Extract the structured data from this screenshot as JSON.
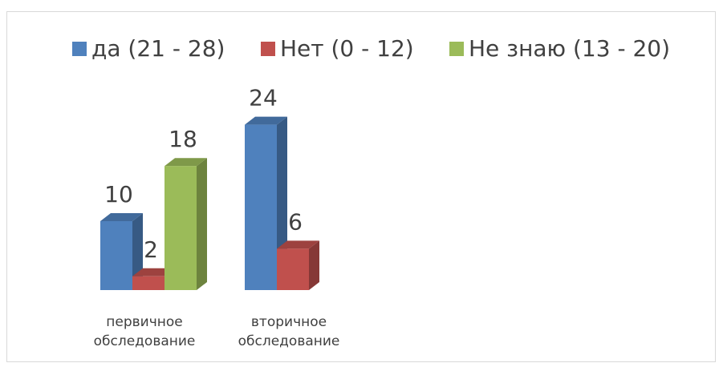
{
  "chart_data": {
    "type": "bar3d",
    "categories": [
      "первичное обследование",
      "вторичное обследование"
    ],
    "series": [
      {
        "name": "да (21 - 28)",
        "color": "#4f81bd",
        "values": [
          10,
          24
        ]
      },
      {
        "name": "Нет (0 - 12)",
        "color": "#c0504d",
        "values": [
          2,
          6
        ]
      },
      {
        "name": "Не знаю (13 - 20)",
        "color": "#9bbb59",
        "values": [
          18,
          null
        ]
      }
    ],
    "legend": "top",
    "data_labels": true
  }
}
